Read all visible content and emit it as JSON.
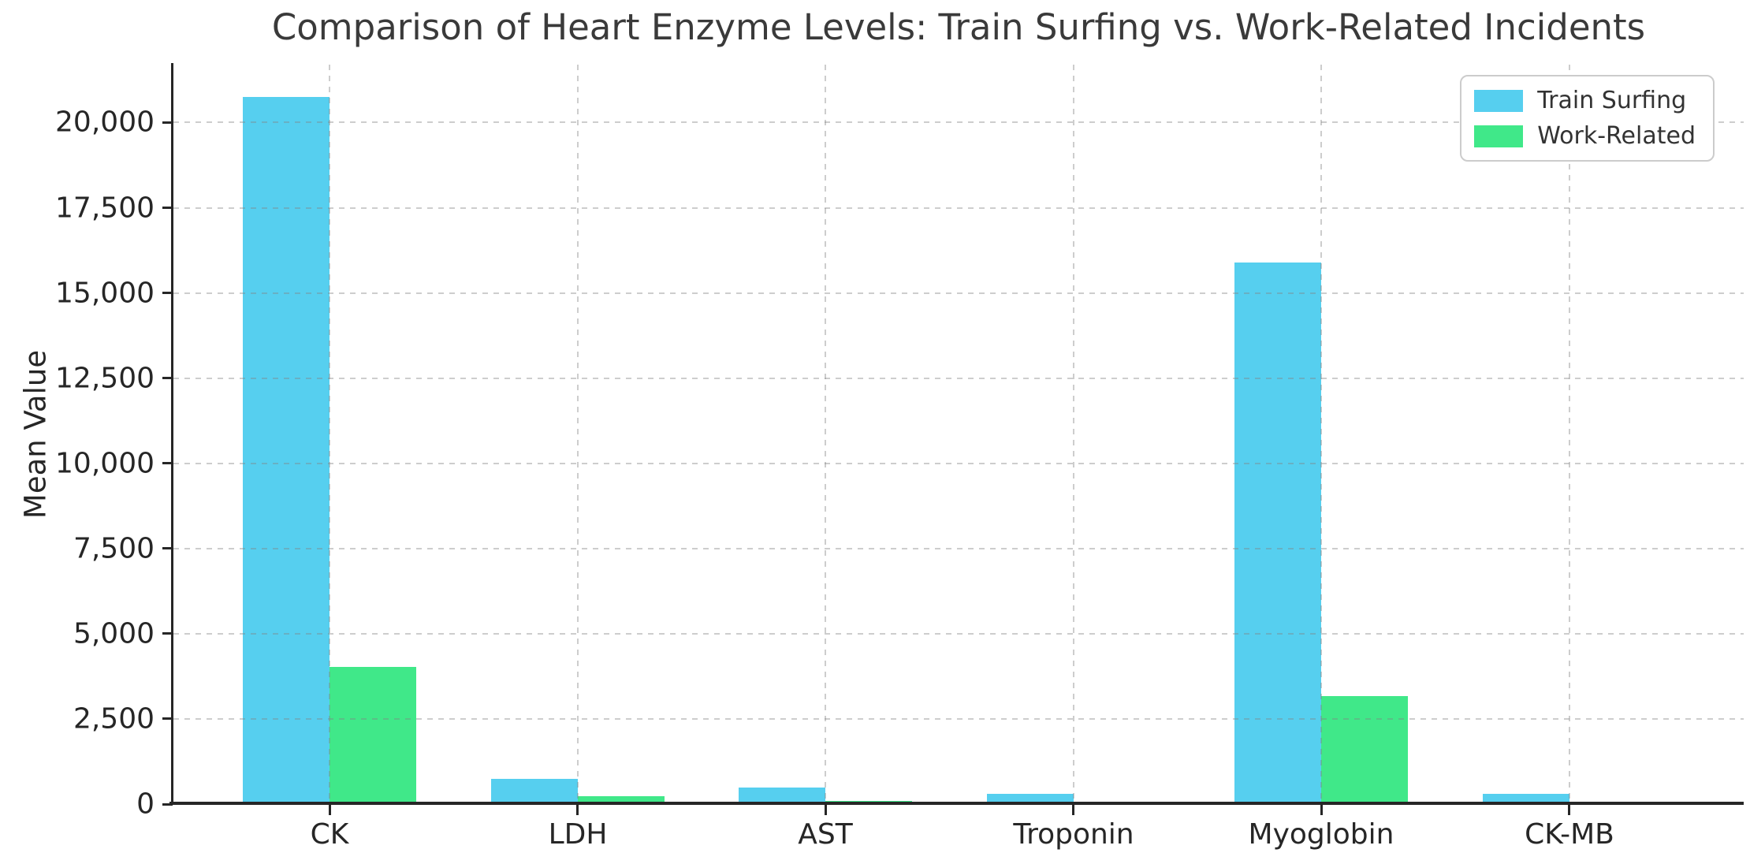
{
  "chart_data": {
    "type": "bar",
    "title": "Comparison of Heart Enzyme Levels: Train Surfing vs. Work-Related Incidents",
    "xlabel": "",
    "ylabel": "Mean Value",
    "categories": [
      "CK",
      "LDH",
      "AST",
      "Troponin",
      "Myoglobin",
      "CK-MB"
    ],
    "series": [
      {
        "name": "Train Surfing",
        "color": "#56CFEF",
        "values": [
          20750,
          730,
          490,
          310,
          15900,
          310
        ]
      },
      {
        "name": "Work-Related",
        "color": "#40E889",
        "values": [
          4030,
          240,
          90,
          15,
          3180,
          55
        ]
      }
    ],
    "ylim": [
      0,
      21700
    ],
    "ytick_values": [
      0,
      2500,
      5000,
      7500,
      10000,
      12500,
      15000,
      17500,
      20000
    ],
    "ytick_labels": [
      "0",
      "2,500",
      "5,000",
      "7,500",
      "10,000",
      "12,500",
      "15,000",
      "17,500",
      "20,000"
    ],
    "grid": "dashed-both",
    "legend_position": "upper right",
    "spines": [
      "left",
      "bottom"
    ]
  }
}
